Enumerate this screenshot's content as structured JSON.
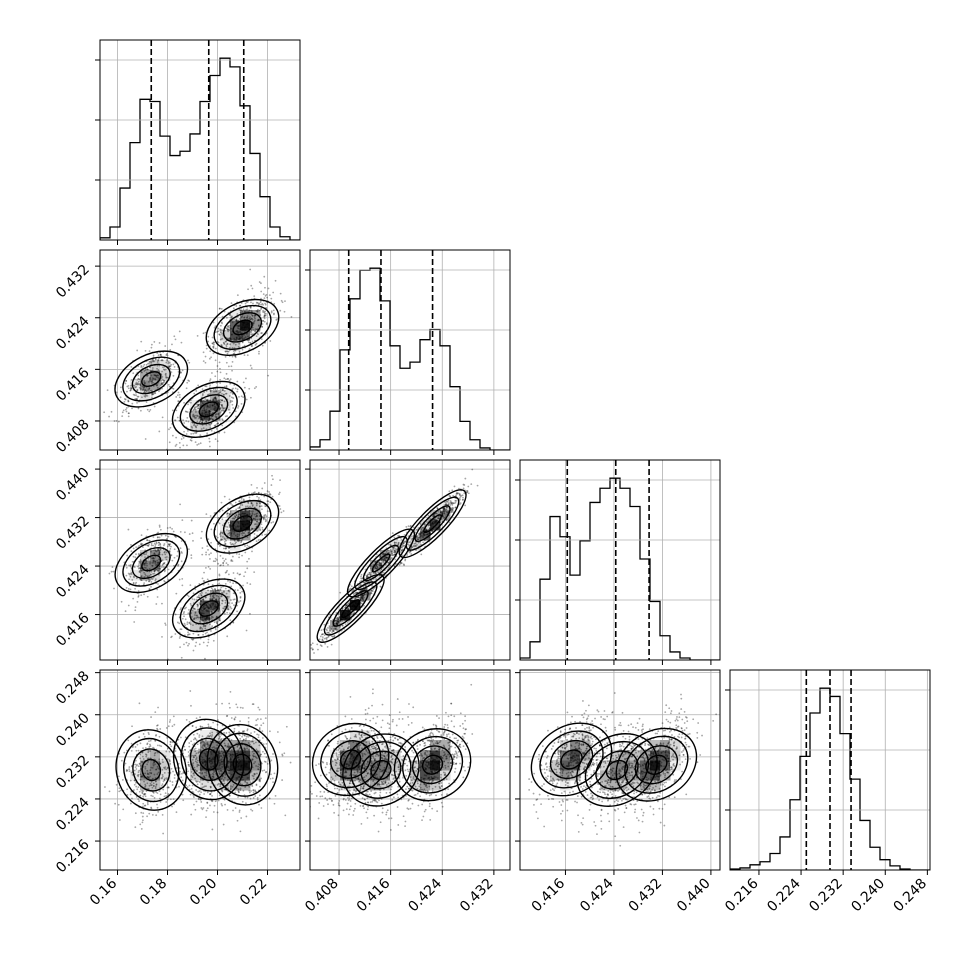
{
  "chart_data": {
    "type": "corner",
    "description_note": "",
    "parameters": [
      {
        "range": [
          0.153,
          0.233
        ],
        "ticks": [
          "0.16",
          "0.18",
          "0.20",
          "0.22"
        ],
        "tick_values": [
          0.16,
          0.18,
          0.2,
          0.22
        ],
        "quantiles": [
          0.1735,
          0.1965,
          0.2105
        ],
        "hist_bins": [
          0.153,
          0.157,
          0.161,
          0.165,
          0.169,
          0.173,
          0.177,
          0.181,
          0.185,
          0.189,
          0.193,
          0.197,
          0.201,
          0.205,
          0.209,
          0.213,
          0.217,
          0.221,
          0.225,
          0.229,
          0.233
        ],
        "hist_counts": [
          2,
          12,
          48,
          90,
          130,
          128,
          96,
          78,
          82,
          98,
          128,
          152,
          168,
          160,
          124,
          80,
          40,
          12,
          3,
          0
        ]
      },
      {
        "range": [
          0.4035,
          0.4345
        ],
        "ticks": [
          "0.408",
          "0.416",
          "0.424",
          "0.432"
        ],
        "tick_values": [
          0.408,
          0.416,
          0.424,
          0.432
        ],
        "quantiles": [
          0.4095,
          0.4145,
          0.4225
        ],
        "hist_bins": [
          0.4035,
          0.405,
          0.4065,
          0.408,
          0.4095,
          0.411,
          0.4125,
          0.414,
          0.4155,
          0.417,
          0.4185,
          0.42,
          0.4215,
          0.423,
          0.4245,
          0.426,
          0.4275,
          0.429,
          0.4305,
          0.432,
          0.4335
        ],
        "hist_counts": [
          3,
          10,
          38,
          98,
          148,
          176,
          178,
          146,
          102,
          80,
          86,
          108,
          118,
          102,
          62,
          28,
          10,
          2,
          0,
          0
        ]
      },
      {
        "range": [
          0.4085,
          0.4415
        ],
        "ticks": [
          "0.416",
          "0.424",
          "0.432",
          "0.440"
        ],
        "tick_values": [
          0.416,
          0.424,
          0.432,
          0.44
        ],
        "quantiles": [
          0.4163,
          0.4243,
          0.4298
        ],
        "hist_bins": [
          0.4085,
          0.41015,
          0.4118,
          0.41345,
          0.4151,
          0.41675,
          0.4184,
          0.42005,
          0.4217,
          0.42335,
          0.425,
          0.42665,
          0.4283,
          0.42995,
          0.4316,
          0.43325,
          0.4349,
          0.43655,
          0.4382,
          0.43985
        ],
        "hist_counts": [
          2,
          18,
          80,
          142,
          122,
          84,
          118,
          156,
          170,
          180,
          170,
          152,
          100,
          58,
          24,
          8,
          2,
          0,
          0,
          0
        ]
      },
      {
        "range": [
          0.2105,
          0.2485
        ],
        "ticks": [
          "0.216",
          "0.224",
          "0.232",
          "0.240",
          "0.248"
        ],
        "tick_values": [
          0.216,
          0.224,
          0.232,
          0.24,
          0.248
        ],
        "quantiles": [
          0.225,
          0.2295,
          0.2335
        ],
        "hist_bins": [
          0.2105,
          0.2124,
          0.2143,
          0.2162,
          0.2181,
          0.22,
          0.2219,
          0.2238,
          0.2257,
          0.2276,
          0.2295,
          0.2314,
          0.2333,
          0.2352,
          0.2371,
          0.239,
          0.2409,
          0.2428,
          0.2447,
          0.2466
        ],
        "hist_counts": [
          1,
          2,
          5,
          8,
          16,
          32,
          68,
          110,
          152,
          176,
          168,
          132,
          88,
          48,
          22,
          10,
          4,
          1,
          0,
          0
        ]
      }
    ],
    "clusters": [
      {
        "weight": 0.28,
        "mean": [
          0.1735,
          0.4145,
          0.4245,
          0.2295
        ],
        "sd": [
          0.0055,
          0.0022,
          0.0025,
          0.0037
        ]
      },
      {
        "weight": 0.34,
        "mean": [
          0.1965,
          0.4098,
          0.417,
          0.2315
        ],
        "sd": [
          0.0055,
          0.0022,
          0.0025,
          0.0037
        ]
      },
      {
        "weight": 0.38,
        "mean": [
          0.21,
          0.4225,
          0.431,
          0.2305
        ],
        "sd": [
          0.0055,
          0.0022,
          0.0025,
          0.0037
        ]
      }
    ],
    "grid": true
  }
}
